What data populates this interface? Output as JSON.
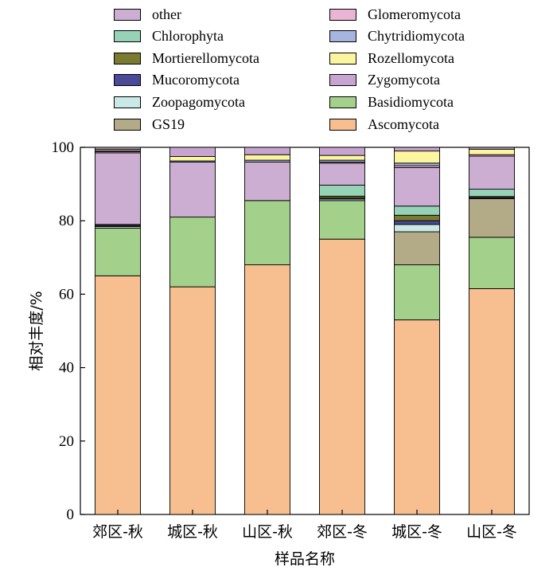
{
  "chart_data": {
    "type": "bar",
    "stacked": true,
    "xlabel": "样品名称",
    "ylabel": "相对丰度/%",
    "ylim": [
      0,
      100
    ],
    "yticks": [
      0,
      20,
      40,
      60,
      80,
      100
    ],
    "categories": [
      "郊区-秋",
      "城区-秋",
      "山区-秋",
      "郊区-冬",
      "城区-冬",
      "山区-冬"
    ],
    "legend_position": "top",
    "series": [
      {
        "name": "Ascomycota",
        "color": "#f7be90",
        "values": [
          65.0,
          62.0,
          68.0,
          75.0,
          53.0,
          61.5
        ]
      },
      {
        "name": "Basidiomycota",
        "color": "#a3d08b",
        "values": [
          13.0,
          19.0,
          17.5,
          10.5,
          15.0,
          14.0
        ]
      },
      {
        "name": "GS19",
        "color": "#b3aa88",
        "values": [
          0.0,
          0.0,
          0.0,
          0.0,
          9.0,
          10.5
        ]
      },
      {
        "name": "Zoopagomycota",
        "color": "#c9e8e6",
        "values": [
          0.4,
          0.0,
          0.0,
          0.4,
          2.0,
          0.0
        ]
      },
      {
        "name": "Mucoromycota",
        "color": "#4a4a96",
        "values": [
          0.3,
          0.0,
          0.0,
          0.3,
          1.0,
          0.3
        ]
      },
      {
        "name": "Mortierellomycota",
        "color": "#7a7a30",
        "values": [
          0.3,
          0.0,
          0.0,
          0.5,
          1.5,
          0.3
        ]
      },
      {
        "name": "Chlorophyta",
        "color": "#96d2b5",
        "values": [
          0.0,
          0.0,
          0.0,
          3.0,
          2.5,
          2.0
        ]
      },
      {
        "name": "other",
        "color": "#ccaed2",
        "values": [
          19.5,
          15.0,
          10.5,
          6.0,
          10.5,
          9.0
        ]
      },
      {
        "name": "Glomeromycota",
        "color": "#eab4d4",
        "values": [
          0.3,
          0.0,
          0.0,
          0.3,
          0.5,
          0.4
        ]
      },
      {
        "name": "Chytridiomycota",
        "color": "#a5b5de",
        "values": [
          0.3,
          0.3,
          0.5,
          0.5,
          0.7,
          0.0
        ]
      },
      {
        "name": "Rozellomycota",
        "color": "#fbf5a0",
        "values": [
          0.4,
          1.2,
          1.5,
          1.3,
          3.3,
          1.5
        ]
      },
      {
        "name": "Zygomycota",
        "color": "#c8a4d0",
        "values": [
          0.5,
          2.5,
          2.0,
          2.2,
          1.0,
          0.5
        ]
      }
    ]
  },
  "legend": {
    "left": [
      "other",
      "Chlorophyta",
      "Mortierellomycota",
      "Mucoromycota",
      "Zoopagomycota",
      "GS19"
    ],
    "right": [
      "Glomeromycota",
      "Chytridiomycota",
      "Rozellomycota",
      "Zygomycota",
      "Basidiomycota",
      "Ascomycota"
    ]
  }
}
